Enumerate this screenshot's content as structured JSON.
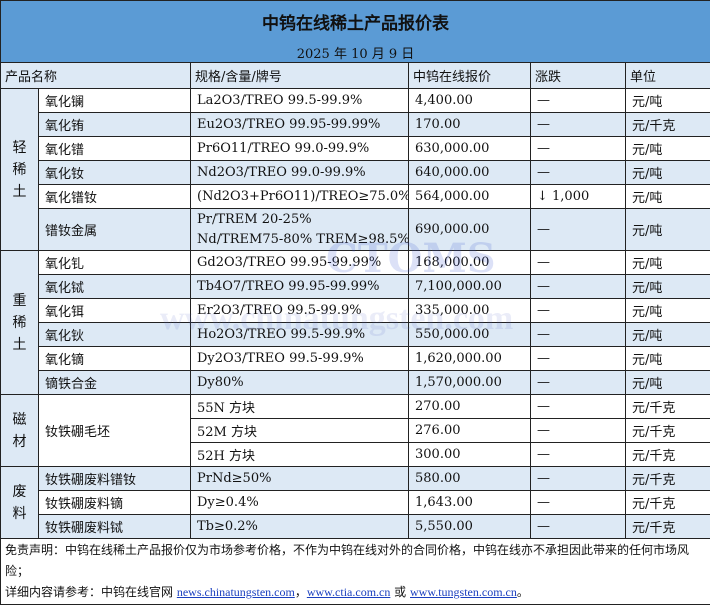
{
  "title": "中钨在线稀土产品报价表",
  "date": "2025 年 10 月 9 日",
  "headers": [
    "产品名称",
    "规格/含量/牌号",
    "中钨在线报价",
    "涨跌",
    "单位"
  ],
  "groups": [
    {
      "category": "轻稀土",
      "rows": [
        {
          "name": "氧化镧",
          "spec": "La2O3/TREO 99.5-99.9%",
          "price": "4,400.00",
          "change": "—",
          "unit": "元/吨"
        },
        {
          "name": "氧化铕",
          "spec": "Eu2O3/TREO 99.95-99.99%",
          "price": "170.00",
          "change": "—",
          "unit": "元/千克"
        },
        {
          "name": "氧化镨",
          "spec": "Pr6O11/TREO 99.0-99.9%",
          "price": "630,000.00",
          "change": "—",
          "unit": "元/吨"
        },
        {
          "name": "氧化钕",
          "spec": "Nd2O3/TREO 99.0-99.9%",
          "price": "640,000.00",
          "change": "—",
          "unit": "元/吨"
        },
        {
          "name": "氧化镨钕",
          "spec": "(Nd2O3+Pr6O11)/TREO≥75.0%",
          "price": "564,000.00",
          "change": "↓ 1,000",
          "unit": "元/吨"
        },
        {
          "name": "镨钕金属",
          "spec": "Pr/TREM 20-25%",
          "spec2": "Nd/TREM75-80% TREM≥98.5%",
          "price": "690,000.00",
          "change": "—",
          "unit": "元/吨"
        }
      ]
    },
    {
      "category": "重稀土",
      "rows": [
        {
          "name": "氧化钆",
          "spec": "Gd2O3/TREO 99.95-99.99%",
          "price": "168,000.00",
          "change": "—",
          "unit": "元/吨"
        },
        {
          "name": "氧化铽",
          "spec": "Tb4O7/TREO 99.95-99.99%",
          "price": "7,100,000.00",
          "change": "—",
          "unit": "元/吨"
        },
        {
          "name": "氧化铒",
          "spec": "Er2O3/TREO 99.5-99.9%",
          "price": "335,000.00",
          "change": "—",
          "unit": "元/吨"
        },
        {
          "name": "氧化钬",
          "spec": "Ho2O3/TREO 99.5-99.9%",
          "price": "550,000.00",
          "change": "—",
          "unit": "元/吨"
        },
        {
          "name": "氧化镝",
          "spec": "Dy2O3/TREO 99.5-99.9%",
          "price": "1,620,000.00",
          "change": "—",
          "unit": "元/吨"
        },
        {
          "name": "镝铁合金",
          "spec": "Dy80%",
          "price": "1,570,000.00",
          "change": "—",
          "unit": "元/吨"
        }
      ]
    },
    {
      "category": "磁材",
      "name": "钕铁硼毛坯",
      "rows": [
        {
          "spec": "55N 方块",
          "price": "270.00",
          "change": "—",
          "unit": "元/千克"
        },
        {
          "spec": "52M 方块",
          "price": "276.00",
          "change": "—",
          "unit": "元/千克"
        },
        {
          "spec": "52H 方块",
          "price": "300.00",
          "change": "—",
          "unit": "元/千克"
        }
      ]
    },
    {
      "category": "废料",
      "rows": [
        {
          "name": "钕铁硼废料镨钕",
          "spec": "PrNd≥50%",
          "price": "580.00",
          "change": "—",
          "unit": "元/千克"
        },
        {
          "name": "钕铁硼废料镝",
          "spec": "Dy≥0.4%",
          "price": "1,643.00",
          "change": "—",
          "unit": "元/千克"
        },
        {
          "name": "钕铁硼废料铽",
          "spec": "Tb≥0.2%",
          "price": "5,550.00",
          "change": "—",
          "unit": "元/千克"
        }
      ]
    }
  ],
  "footer": {
    "disclaimer": "免责声明：中钨在线稀土产品报价仅为市场参考价格，不作为中钨在线对外的合同价格，中钨在线亦不承担因此带来的任何市场风险；",
    "ref_prefix": "详细内容请参考：中钨在线官网 ",
    "link1": "news.chinatungsten.com",
    "sep1": "，",
    "link2": "www.ctia.com.cn",
    "sep2": " 或 ",
    "link3": "www.tungsten.com.cn",
    "end": "。"
  },
  "watermark": {
    "text": "www.chinatungsten.com",
    "logo": "CTOMS"
  }
}
